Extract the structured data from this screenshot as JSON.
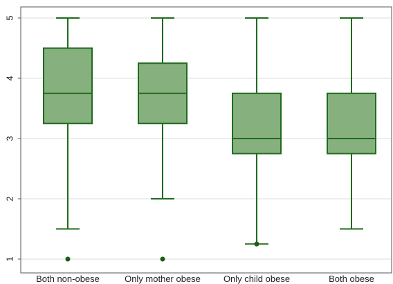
{
  "chart_data": {
    "type": "box",
    "title": "",
    "xlabel": "",
    "ylabel": "",
    "ylim": [
      1,
      5
    ],
    "yticks": [
      "1",
      "2",
      "3",
      "4",
      "5"
    ],
    "grid": true,
    "legend": "none",
    "colors": {
      "box_fill": "#86b07e",
      "stroke": "#1e6b1e",
      "outlier": "#1a5c1a",
      "grid": "#dddddd",
      "frame": "#555555"
    },
    "categories": [
      "Both non-obese",
      "Only mother obese",
      "Only child obese",
      "Both obese"
    ],
    "boxes": [
      {
        "whisker_low": 1.5,
        "q1": 3.25,
        "median": 3.75,
        "q3": 4.5,
        "whisker_high": 5,
        "outliers": [
          1
        ]
      },
      {
        "whisker_low": 2,
        "q1": 3.25,
        "median": 3.75,
        "q3": 4.25,
        "whisker_high": 5,
        "outliers": [
          1
        ]
      },
      {
        "whisker_low": 1.25,
        "q1": 2.75,
        "median": 3,
        "q3": 3.75,
        "whisker_high": 5,
        "outliers": [
          1.25
        ]
      },
      {
        "whisker_low": 1.5,
        "q1": 2.75,
        "median": 3,
        "q3": 3.75,
        "whisker_high": 5,
        "outliers": []
      }
    ]
  }
}
